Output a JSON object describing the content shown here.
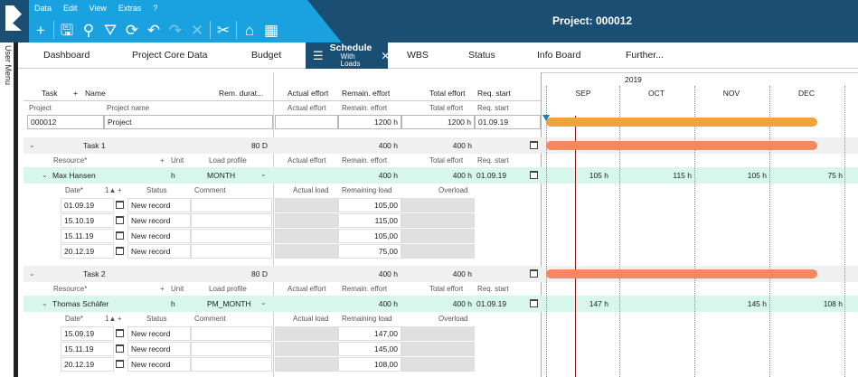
{
  "menu": [
    "Data",
    "Edit",
    "View",
    "Extras",
    "?"
  ],
  "toolbar": [
    {
      "icon": "plus-icon",
      "glyph": "+",
      "dim": false
    },
    {
      "icon": "save-icon",
      "glyph": "🖫",
      "dim": false
    },
    {
      "icon": "search-icon",
      "glyph": "⚲",
      "dim": false
    },
    {
      "icon": "filter-icon",
      "glyph": "⛛",
      "dim": false
    },
    {
      "icon": "refresh-icon",
      "glyph": "⟳",
      "dim": false
    },
    {
      "icon": "undo-icon",
      "glyph": "↶",
      "dim": false
    },
    {
      "icon": "redo-icon",
      "glyph": "↷",
      "dim": true
    },
    {
      "icon": "cancel-icon",
      "glyph": "✕",
      "dim": true
    },
    {
      "icon": "tools-icon",
      "glyph": "✂",
      "dim": false
    },
    {
      "icon": "home-icon",
      "glyph": "⌂",
      "dim": false
    },
    {
      "icon": "calendar-icon",
      "glyph": "▦",
      "dim": false
    }
  ],
  "project_title": "Project: 000012",
  "side_menu_label": "User Menu",
  "tabs": [
    {
      "label": "Dashboard"
    },
    {
      "label": "Project Core Data"
    },
    {
      "label": "Budget"
    },
    {
      "label": "Schedule",
      "sub": "With Loads",
      "active": true
    },
    {
      "label": "WBS"
    },
    {
      "label": "Status"
    },
    {
      "label": "Info Board"
    },
    {
      "label": "Further..."
    }
  ],
  "header": {
    "task": "Task",
    "plus": "+",
    "name": "Name",
    "rem_duration": "Rem. durat...",
    "actual_effort": "Actual effort",
    "remain_effort": "Remain. effort",
    "total_effort": "Total effort",
    "req_start": "Req. start"
  },
  "project_sub": {
    "project": "Project",
    "project_name": "Project name",
    "actual_effort": "Actual effort",
    "remain_effort": "Remain. effort",
    "total_effort": "Total effort",
    "req_start": "Req. start"
  },
  "project_row": {
    "id": "000012",
    "name": "Project",
    "remain": "1200 h",
    "total": "1200 h",
    "start": "01.09.19"
  },
  "resource_header": {
    "resource": "Resource*",
    "plus": "+",
    "unit": "Unit",
    "load_profile": "Load profile",
    "actual_effort": "Actual effort",
    "remain_effort": "Remain. effort",
    "total_effort": "Total effort",
    "req_start": "Req. start"
  },
  "load_header": {
    "date": "Date*",
    "sort": "1▲",
    "plus": "+",
    "status": "Status",
    "comment": "Comment",
    "actual_load": "Actual load",
    "remaining_load": "Remaining load",
    "overload": "Overload"
  },
  "timeline": {
    "year": "2019",
    "months": [
      "SEP",
      "OCT",
      "NOV",
      "DEC"
    ]
  },
  "tasks": [
    {
      "name": "Task 1",
      "duration": "80 D",
      "remain": "400 h",
      "total": "400 h",
      "resource": {
        "name": "Max Hansen",
        "unit": "h",
        "profile": "MONTH",
        "remain": "400 h",
        "total": "400 h",
        "start": "01.09.19",
        "gantt": [
          "105 h",
          "115 h",
          "105 h",
          "75 h"
        ]
      },
      "loads": [
        {
          "date": "01.09.19",
          "status": "New record",
          "remaining": "105,00"
        },
        {
          "date": "15.10.19",
          "status": "New record",
          "remaining": "115,00"
        },
        {
          "date": "15.11.19",
          "status": "New record",
          "remaining": "105,00"
        },
        {
          "date": "20.12.19",
          "status": "New record",
          "remaining": "75,00"
        }
      ]
    },
    {
      "name": "Task 2",
      "duration": "80 D",
      "remain": "400 h",
      "total": "400 h",
      "resource": {
        "name": "Thomas Schäfer",
        "unit": "h",
        "profile": "PM_MONTH",
        "remain": "400 h",
        "total": "400 h",
        "start": "01.09.19",
        "gantt": [
          "147 h",
          "",
          "145 h",
          "108 h"
        ]
      },
      "loads": [
        {
          "date": "15.09.19",
          "status": "New record",
          "remaining": "147,00"
        },
        {
          "date": "15.11.19",
          "status": "New record",
          "remaining": "145,00"
        },
        {
          "date": "20.12.19",
          "status": "New record",
          "remaining": "108,00"
        }
      ]
    }
  ],
  "colors": {
    "toolbar_dark": "#1a4f73",
    "toolbar_light": "#1aa1e0",
    "project_bar": "#f0a23c",
    "task_bar": "#f7875f",
    "resource_band": "#d7f7ec",
    "today_line": "#8b1a1a"
  }
}
